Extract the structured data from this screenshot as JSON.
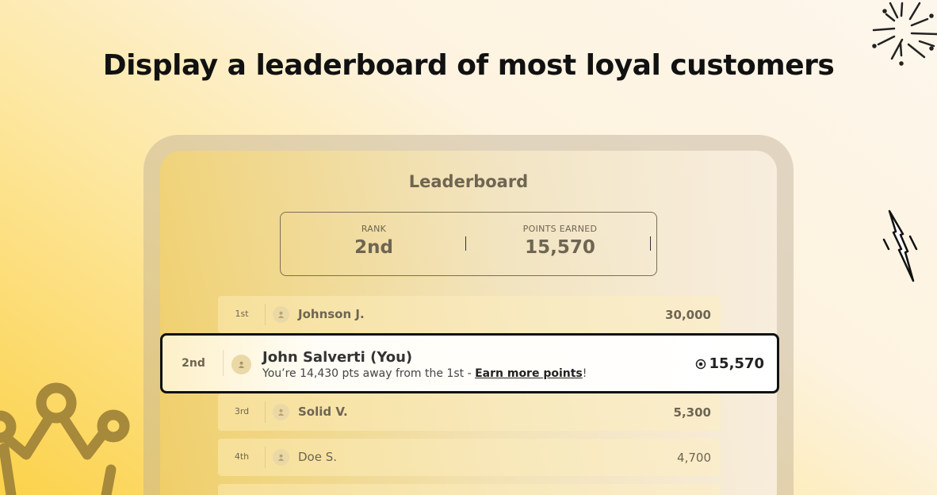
{
  "headline": "Display a leaderboard of most loyal customers",
  "leaderboard": {
    "title": "Leaderboard",
    "summary": {
      "rank_label": "RANK",
      "rank_value": "2nd",
      "points_label": "POINTS EARNED",
      "points_value": "15,570"
    },
    "rows": [
      {
        "rank": "1st",
        "name": "Johnson J.",
        "points": "30,000"
      },
      {
        "rank": "3rd",
        "name": "Solid V.",
        "points": "5,300"
      },
      {
        "rank": "4th",
        "name": "Doe S.",
        "points": "4,700"
      }
    ],
    "current_user": {
      "rank": "2nd",
      "name": "John Salverti (You)",
      "message": "You’re 14,430 pts away from the 1st - ",
      "link": "Earn more points",
      "link_suffix": "!",
      "points": "15,570",
      "points_icon": "target-coin-icon"
    }
  },
  "colors": {
    "accent_yellow": "#fcd24a",
    "text_muted": "#6e6552",
    "highlight_border": "#111111"
  }
}
